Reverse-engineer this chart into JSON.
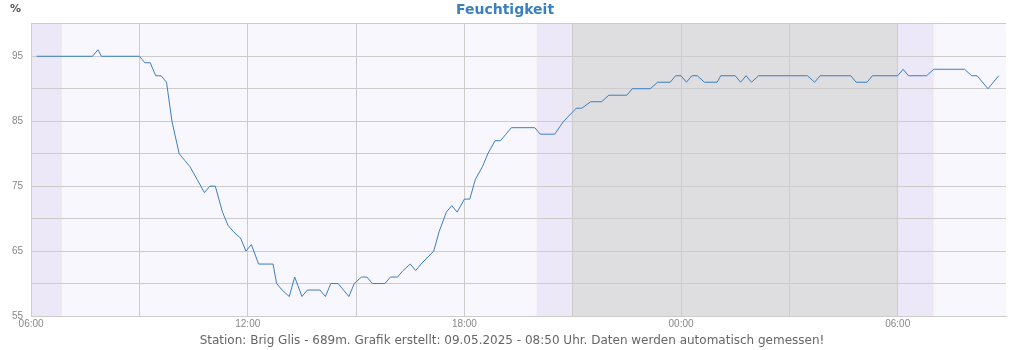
{
  "chart_data": {
    "type": "line",
    "title": "Feuchtigkeit",
    "ylabel": "%",
    "annotations": [
      "Station: Brig Glis - 689m. Grafik erstellt: 09.05.2025 - 08:50 Uhr. Daten werden automatisch gemessen!"
    ],
    "series": [
      {
        "color": "#3a7fc0",
        "x": [
          "2025-05-08T06:09",
          "2025-05-08T07:42",
          "2025-05-08T07:51",
          "2025-05-08T07:57",
          "2025-05-08T09:00",
          "2025-05-08T09:09",
          "2025-05-08T09:18",
          "2025-05-08T09:27",
          "2025-05-08T09:36",
          "2025-05-08T09:45",
          "2025-05-08T09:54",
          "2025-05-08T10:06",
          "2025-05-08T10:15",
          "2025-05-08T10:24",
          "2025-05-08T10:36",
          "2025-05-08T10:48",
          "2025-05-08T10:57",
          "2025-05-08T11:06",
          "2025-05-08T11:18",
          "2025-05-08T11:27",
          "2025-05-08T11:36",
          "2025-05-08T11:48",
          "2025-05-08T11:57",
          "2025-05-08T12:06",
          "2025-05-08T12:18",
          "2025-05-08T12:42",
          "2025-05-08T12:48",
          "2025-05-08T12:57",
          "2025-05-08T13:09",
          "2025-05-08T13:18",
          "2025-05-08T13:30",
          "2025-05-08T13:39",
          "2025-05-08T14:00",
          "2025-05-08T14:09",
          "2025-05-08T14:18",
          "2025-05-08T14:30",
          "2025-05-08T14:39",
          "2025-05-08T14:48",
          "2025-05-08T14:57",
          "2025-05-08T15:09",
          "2025-05-08T15:18",
          "2025-05-08T15:27",
          "2025-05-08T15:48",
          "2025-05-08T15:57",
          "2025-05-08T16:09",
          "2025-05-08T16:18",
          "2025-05-08T16:30",
          "2025-05-08T16:39",
          "2025-05-08T16:48",
          "2025-05-08T17:09",
          "2025-05-08T17:18",
          "2025-05-08T17:30",
          "2025-05-08T17:39",
          "2025-05-08T17:48",
          "2025-05-08T18:00",
          "2025-05-08T18:09",
          "2025-05-08T18:18",
          "2025-05-08T18:30",
          "2025-05-08T18:39",
          "2025-05-08T18:51",
          "2025-05-08T19:00",
          "2025-05-08T19:09",
          "2025-05-08T19:18",
          "2025-05-08T19:57",
          "2025-05-08T20:06",
          "2025-05-08T20:30",
          "2025-05-08T20:45",
          "2025-05-08T21:06",
          "2025-05-08T21:15",
          "2025-05-08T21:30",
          "2025-05-08T21:48",
          "2025-05-08T22:00",
          "2025-05-08T22:30",
          "2025-05-08T22:39",
          "2025-05-08T23:09",
          "2025-05-08T23:21",
          "2025-05-08T23:42",
          "2025-05-08T23:51",
          "2025-05-09T00:00",
          "2025-05-09T00:09",
          "2025-05-09T00:18",
          "2025-05-09T00:27",
          "2025-05-09T00:39",
          "2025-05-09T01:00",
          "2025-05-09T01:06",
          "2025-05-09T01:30",
          "2025-05-09T01:39",
          "2025-05-09T01:48",
          "2025-05-09T01:57",
          "2025-05-09T02:09",
          "2025-05-09T03:30",
          "2025-05-09T03:42",
          "2025-05-09T03:51",
          "2025-05-09T04:42",
          "2025-05-09T04:51",
          "2025-05-09T05:09",
          "2025-05-09T05:18",
          "2025-05-09T06:00",
          "2025-05-09T06:09",
          "2025-05-09T06:18",
          "2025-05-09T06:48",
          "2025-05-09T07:00",
          "2025-05-09T07:51",
          "2025-05-09T08:03",
          "2025-05-09T08:12",
          "2025-05-09T08:30",
          "2025-05-09T08:48"
        ],
        "values": [
          95,
          95,
          96,
          95,
          95,
          94,
          94,
          92,
          92,
          91,
          85,
          80,
          79,
          78,
          76,
          74,
          75,
          75,
          71,
          69,
          68,
          67,
          65,
          66,
          63,
          63,
          60,
          59,
          58,
          61,
          58,
          59,
          59,
          58,
          60,
          60,
          59,
          58,
          60,
          61,
          61,
          60,
          60,
          61,
          61,
          62,
          63,
          62,
          63,
          65,
          68,
          71,
          72,
          71,
          73,
          73,
          76,
          78,
          80,
          82,
          82,
          83,
          84,
          84,
          83,
          83,
          85,
          87,
          87,
          88,
          88,
          89,
          89,
          90,
          90,
          91,
          91,
          92,
          92,
          91,
          92,
          92,
          91,
          91,
          92,
          92,
          91,
          92,
          91,
          92,
          92,
          91,
          92,
          92,
          91,
          91,
          92,
          92,
          93,
          92,
          92,
          93,
          93,
          92,
          92,
          90,
          92
        ]
      }
    ],
    "xlim": [
      "2025-05-08T06:00",
      "2025-05-09T09:00"
    ],
    "xticks": [
      {
        "value": "2025-05-08T06:00",
        "label": "06:00"
      },
      {
        "value": "2025-05-08T09:00",
        "label": null
      },
      {
        "value": "2025-05-08T12:00",
        "label": "12:00"
      },
      {
        "value": "2025-05-08T15:00",
        "label": null
      },
      {
        "value": "2025-05-08T18:00",
        "label": "18:00"
      },
      {
        "value": "2025-05-08T21:00",
        "label": null
      },
      {
        "value": "2025-05-09T00:00",
        "label": "00:00"
      },
      {
        "value": "2025-05-09T03:00",
        "label": null
      },
      {
        "value": "2025-05-09T06:00",
        "label": "06:00"
      }
    ],
    "ylim": [
      55,
      100
    ],
    "yticks": [
      55,
      {
        "value": 60,
        "label": null
      },
      65,
      {
        "value": 70,
        "label": null
      },
      75,
      {
        "value": 80,
        "label": null
      },
      85,
      {
        "value": 90,
        "label": null
      },
      95,
      {
        "value": 100,
        "label": null
      }
    ],
    "bands": [
      {
        "axis": "x",
        "from": "2025-05-08T06:00",
        "to": "2025-05-08T06:51",
        "color": "#ede8f8"
      },
      {
        "axis": "x",
        "from": "2025-05-08T20:00",
        "to": "2025-05-08T21:00",
        "color": "#ede8f8"
      },
      {
        "axis": "x",
        "from": "2025-05-08T21:00",
        "to": "2025-05-09T06:00",
        "color": "#dedee1"
      },
      {
        "axis": "x",
        "from": "2025-05-09T06:00",
        "to": "2025-05-09T07:00",
        "color": "#ede8f8"
      }
    ],
    "grid": true,
    "legend": false,
    "marker": "none",
    "line_style": "solid"
  }
}
